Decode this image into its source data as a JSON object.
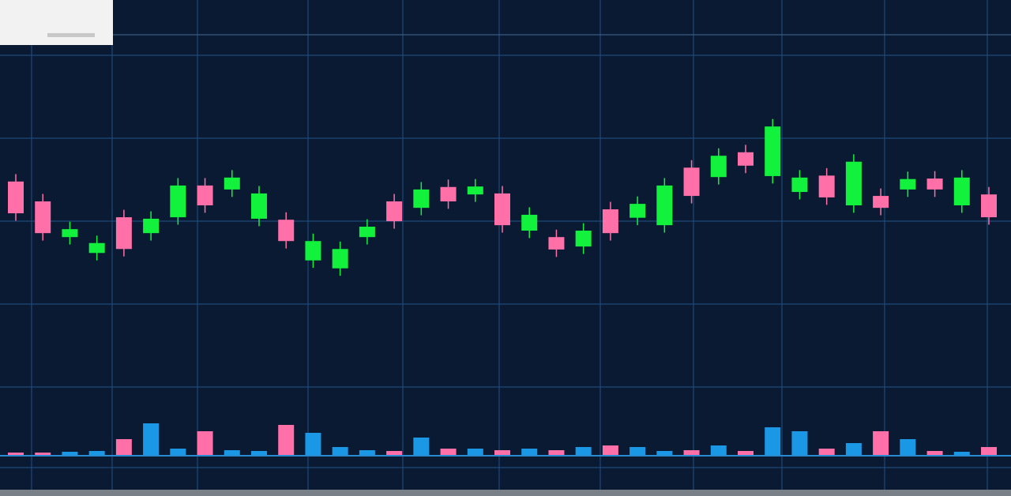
{
  "chart_data": {
    "type": "candlestick",
    "open": [
      63.4,
      59.4,
      52.2,
      49.0,
      56.2,
      53.0,
      56.2,
      62.6,
      61.8,
      55.9,
      55.7,
      47.5,
      45.9,
      52.2,
      59.4,
      58.1,
      62.3,
      60.8,
      61.0,
      53.5,
      52.2,
      50.3,
      57.8,
      56.1,
      54.6,
      66.2,
      64.3,
      69.3,
      64.5,
      61.3,
      64.6,
      58.6,
      60.5,
      61.8,
      64.0,
      58.6,
      60.8
    ],
    "high": [
      64.9,
      60.9,
      55.3,
      52.5,
      57.7,
      57.4,
      64.1,
      64.1,
      65.7,
      62.5,
      57.2,
      52.9,
      51.3,
      55.8,
      60.9,
      63.3,
      63.8,
      63.9,
      62.5,
      58.2,
      53.7,
      55.0,
      59.3,
      60.4,
      64.1,
      67.7,
      70.1,
      70.8,
      76.0,
      65.7,
      66.1,
      68.9,
      62.0,
      65.4,
      65.5,
      65.7,
      62.3
    ],
    "low": [
      55.5,
      51.5,
      50.7,
      47.5,
      48.3,
      51.5,
      54.7,
      57.1,
      60.3,
      54.4,
      49.9,
      46.0,
      44.4,
      50.7,
      53.9,
      56.6,
      57.9,
      59.3,
      53.1,
      52.0,
      48.2,
      48.8,
      51.5,
      54.6,
      53.1,
      59.0,
      62.8,
      65.1,
      63.0,
      59.8,
      58.7,
      57.1,
      56.6,
      60.3,
      60.3,
      57.1,
      54.7
    ],
    "close": [
      57.0,
      53.0,
      53.8,
      51.0,
      49.8,
      55.9,
      62.6,
      58.6,
      64.2,
      61.0,
      51.4,
      51.4,
      49.8,
      54.3,
      55.4,
      61.8,
      59.4,
      62.4,
      54.6,
      56.7,
      49.7,
      53.5,
      53.0,
      58.9,
      62.6,
      60.5,
      68.6,
      66.6,
      74.5,
      64.2,
      60.2,
      67.4,
      58.1,
      63.9,
      61.8,
      64.2,
      56.2
    ],
    "volume": [
      3,
      3,
      4,
      5,
      20,
      40,
      8,
      30,
      6,
      5,
      38,
      28,
      10,
      6,
      5,
      22,
      8,
      8,
      6,
      8,
      6,
      10,
      12,
      10,
      5,
      6,
      12,
      5,
      35,
      30,
      8,
      15,
      30,
      20,
      5,
      4,
      10
    ],
    "ylim": [
      0,
      100
    ],
    "y2lim": [
      0,
      100
    ],
    "up_color": "#12f23c",
    "down_color": "#ff6fa8",
    "volume_up_color": "#1a98e6",
    "volume_down_color": "#ff6fa8"
  }
}
